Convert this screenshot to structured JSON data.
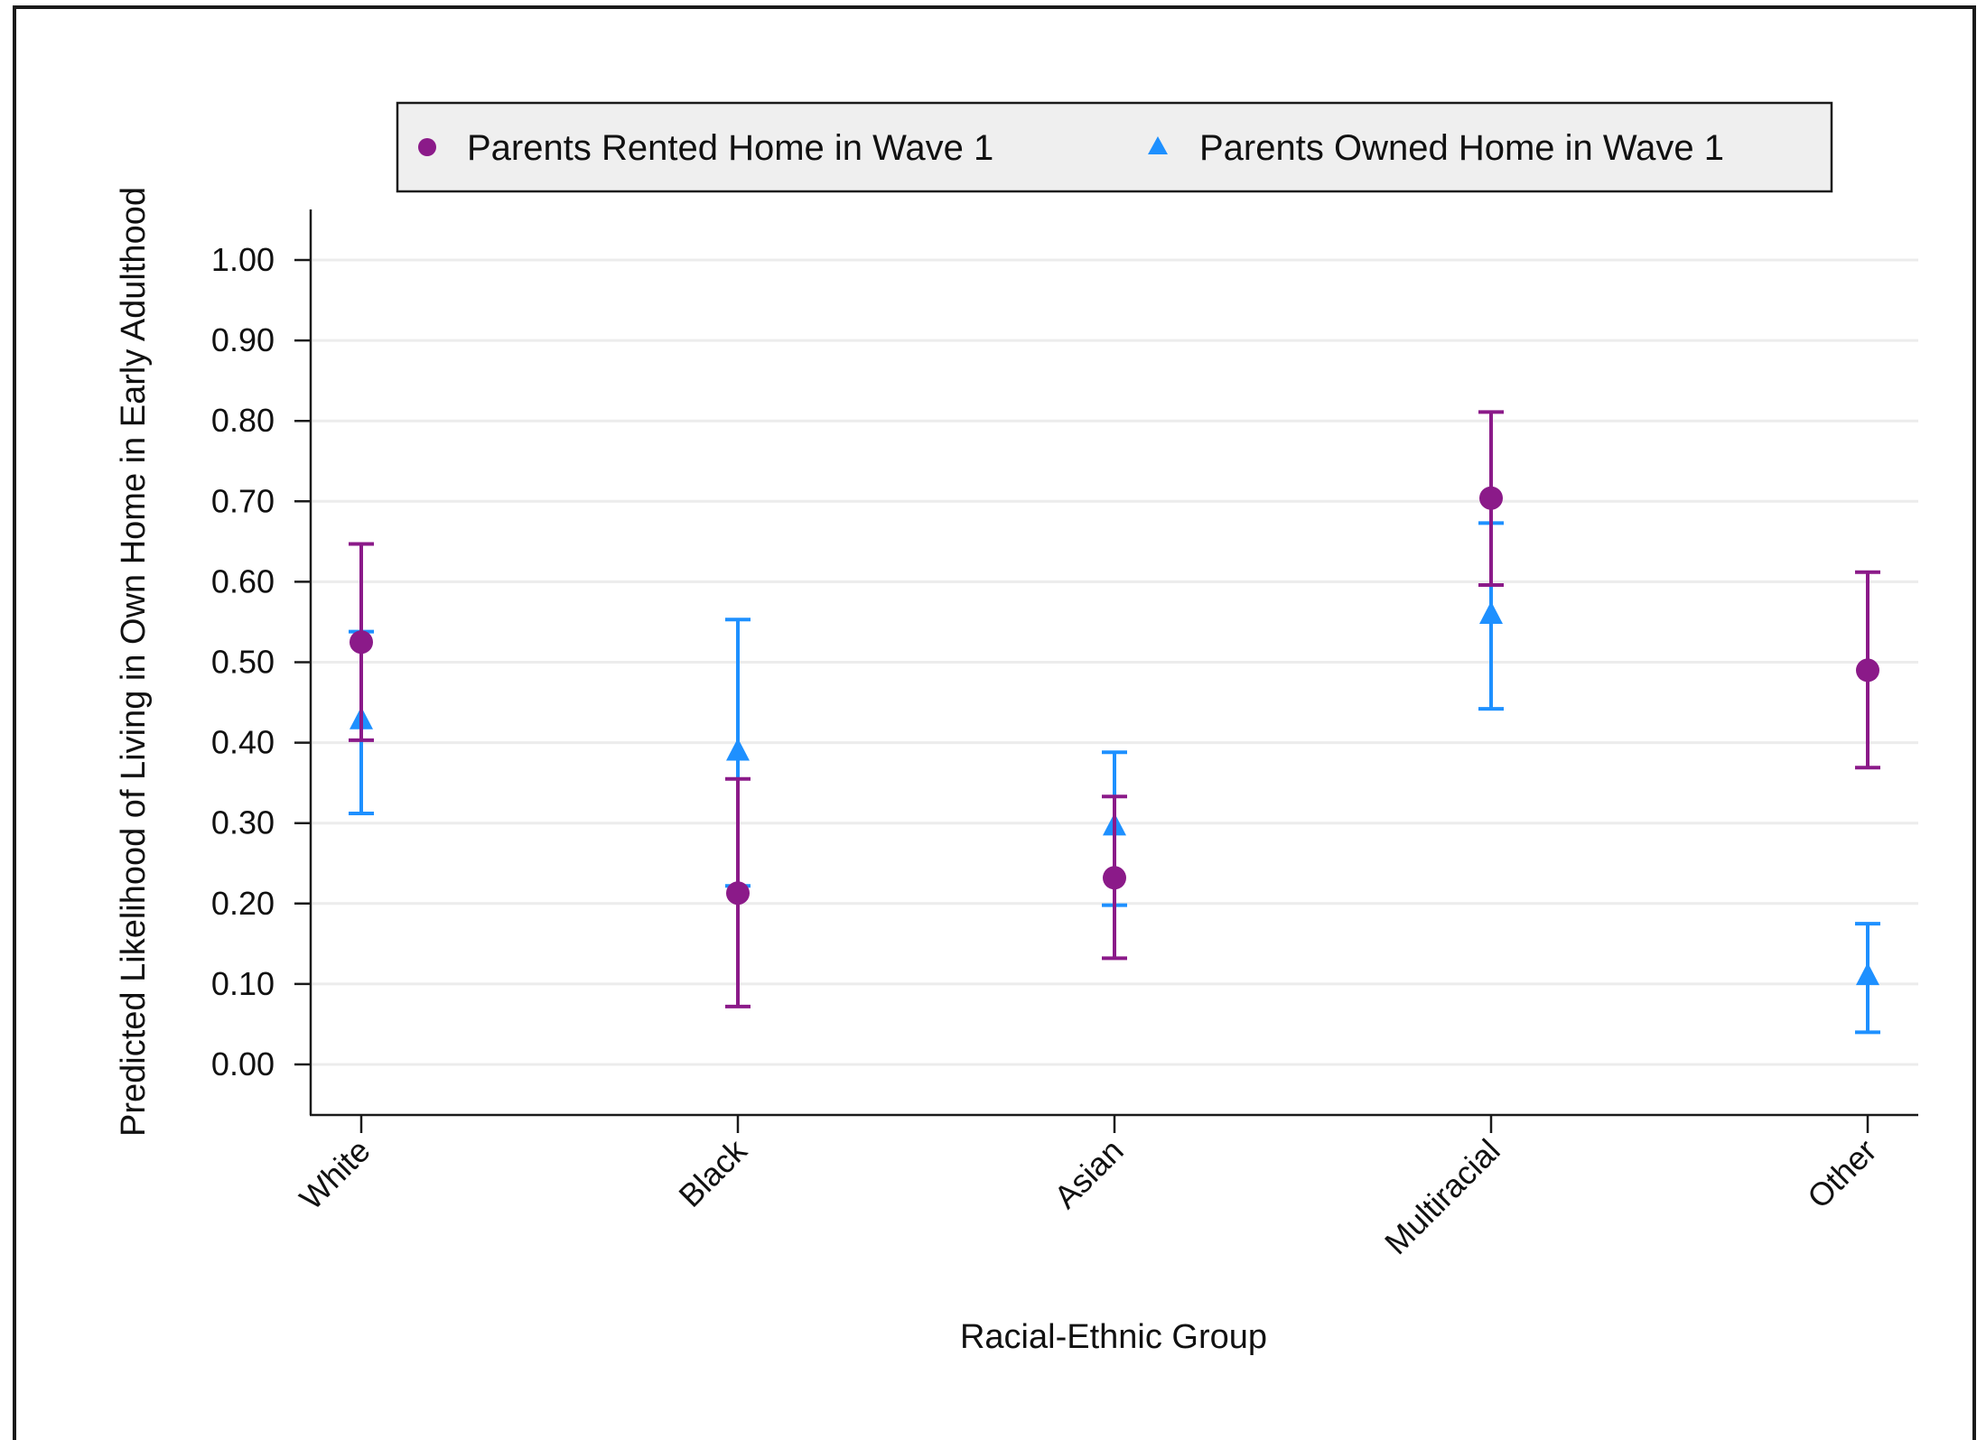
{
  "chart_data": {
    "type": "scatter",
    "title": "",
    "xlabel": "Racial-Ethnic Group",
    "ylabel": "Predicted Likelihood of Living in Own Home in Early Adulthood",
    "categories": [
      "White",
      "Black",
      "Asian",
      "Multiracial",
      "Other"
    ],
    "ylim": [
      -0.06,
      1.06
    ],
    "yticks": [
      0.0,
      0.1,
      0.2,
      0.3,
      0.4,
      0.5,
      0.6,
      0.7,
      0.8,
      0.9,
      1.0
    ],
    "ytick_labels": [
      "0.00",
      "0.10",
      "0.20",
      "0.30",
      "0.40",
      "0.50",
      "0.60",
      "0.70",
      "0.80",
      "0.90",
      "1.00"
    ],
    "grid": "horizontal",
    "legend_position": "top",
    "series": [
      {
        "name": "Parents Rented Home in Wave 1",
        "marker": "circle",
        "color": "#8B1A89",
        "values": [
          0.525,
          0.213,
          0.232,
          0.704,
          0.49
        ],
        "lower": [
          0.403,
          0.072,
          0.132,
          0.596,
          0.369
        ],
        "upper": [
          0.647,
          0.355,
          0.333,
          0.811,
          0.612
        ]
      },
      {
        "name": "Parents Owned Home in Wave 1",
        "marker": "triangle",
        "color": "#1E90FF",
        "values": [
          0.428,
          0.389,
          0.296,
          0.559,
          0.11
        ],
        "lower": [
          0.312,
          0.222,
          0.198,
          0.442,
          0.04
        ],
        "upper": [
          0.538,
          0.553,
          0.388,
          0.673,
          0.175
        ]
      }
    ]
  }
}
